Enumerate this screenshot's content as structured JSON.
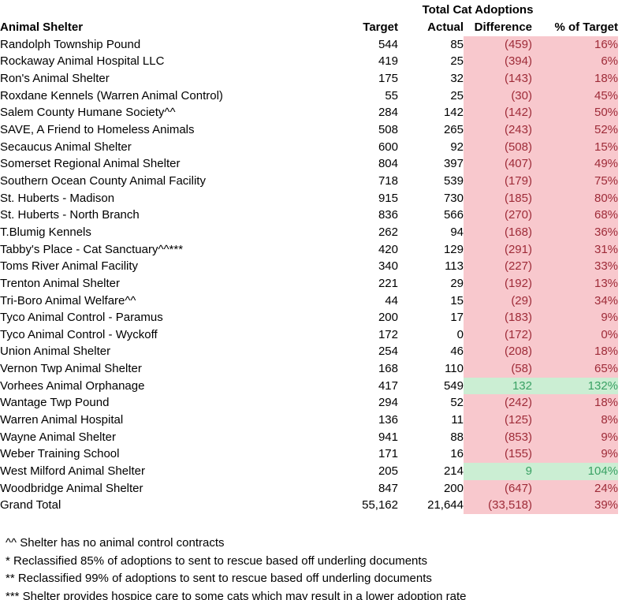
{
  "title": "Total Cat Adoptions",
  "colors": {
    "negative_fill": "#F8C8CD",
    "negative_text": "#9E2B38",
    "positive_fill": "#CBEED3",
    "positive_text": "#3AA164",
    "text": "#000000",
    "background": "#FFFFFF"
  },
  "table": {
    "columns": {
      "shelter": "Animal Shelter",
      "target": "Target",
      "actual": "Actual",
      "difference": "Difference",
      "pct": "% of Target"
    },
    "rows": [
      {
        "shelter": "Randolph Township Pound",
        "target": "544",
        "actual": "85",
        "difference": "(459)",
        "pct": "16%",
        "status": "negative"
      },
      {
        "shelter": "Rockaway Animal Hospital LLC",
        "target": "419",
        "actual": "25",
        "difference": "(394)",
        "pct": "6%",
        "status": "negative"
      },
      {
        "shelter": "Ron's Animal Shelter",
        "target": "175",
        "actual": "32",
        "difference": "(143)",
        "pct": "18%",
        "status": "negative"
      },
      {
        "shelter": "Roxdane Kennels (Warren Animal Control)",
        "target": "55",
        "actual": "25",
        "difference": "(30)",
        "pct": "45%",
        "status": "negative"
      },
      {
        "shelter": "Salem County Humane Society^^",
        "target": "284",
        "actual": "142",
        "difference": "(142)",
        "pct": "50%",
        "status": "negative"
      },
      {
        "shelter": "SAVE, A Friend to Homeless Animals",
        "target": "508",
        "actual": "265",
        "difference": "(243)",
        "pct": "52%",
        "status": "negative"
      },
      {
        "shelter": "Secaucus Animal Shelter",
        "target": "600",
        "actual": "92",
        "difference": "(508)",
        "pct": "15%",
        "status": "negative"
      },
      {
        "shelter": "Somerset Regional Animal Shelter",
        "target": "804",
        "actual": "397",
        "difference": "(407)",
        "pct": "49%",
        "status": "negative"
      },
      {
        "shelter": "Southern Ocean County Animal Facility",
        "target": "718",
        "actual": "539",
        "difference": "(179)",
        "pct": "75%",
        "status": "negative"
      },
      {
        "shelter": "St. Huberts - Madison",
        "target": "915",
        "actual": "730",
        "difference": "(185)",
        "pct": "80%",
        "status": "negative"
      },
      {
        "shelter": "St. Huberts - North Branch",
        "target": "836",
        "actual": "566",
        "difference": "(270)",
        "pct": "68%",
        "status": "negative"
      },
      {
        "shelter": "T.Blumig Kennels",
        "target": "262",
        "actual": "94",
        "difference": "(168)",
        "pct": "36%",
        "status": "negative"
      },
      {
        "shelter": "Tabby's Place - Cat Sanctuary^^***",
        "target": "420",
        "actual": "129",
        "difference": "(291)",
        "pct": "31%",
        "status": "negative"
      },
      {
        "shelter": "Toms River Animal Facility",
        "target": "340",
        "actual": "113",
        "difference": "(227)",
        "pct": "33%",
        "status": "negative"
      },
      {
        "shelter": "Trenton Animal Shelter",
        "target": "221",
        "actual": "29",
        "difference": "(192)",
        "pct": "13%",
        "status": "negative"
      },
      {
        "shelter": "Tri-Boro Animal Welfare^^",
        "target": "44",
        "actual": "15",
        "difference": "(29)",
        "pct": "34%",
        "status": "negative"
      },
      {
        "shelter": "Tyco Animal Control - Paramus",
        "target": "200",
        "actual": "17",
        "difference": "(183)",
        "pct": "9%",
        "status": "negative"
      },
      {
        "shelter": "Tyco Animal Control - Wyckoff",
        "target": "172",
        "actual": "0",
        "difference": "(172)",
        "pct": "0%",
        "status": "negative"
      },
      {
        "shelter": "Union Animal Shelter",
        "target": "254",
        "actual": "46",
        "difference": "(208)",
        "pct": "18%",
        "status": "negative"
      },
      {
        "shelter": "Vernon Twp Animal Shelter",
        "target": "168",
        "actual": "110",
        "difference": "(58)",
        "pct": "65%",
        "status": "negative"
      },
      {
        "shelter": "Vorhees Animal Orphanage",
        "target": "417",
        "actual": "549",
        "difference": "132",
        "pct": "132%",
        "status": "positive"
      },
      {
        "shelter": "Wantage Twp Pound",
        "target": "294",
        "actual": "52",
        "difference": "(242)",
        "pct": "18%",
        "status": "negative"
      },
      {
        "shelter": "Warren Animal Hospital",
        "target": "136",
        "actual": "11",
        "difference": "(125)",
        "pct": "8%",
        "status": "negative"
      },
      {
        "shelter": "Wayne Animal Shelter",
        "target": "941",
        "actual": "88",
        "difference": "(853)",
        "pct": "9%",
        "status": "negative"
      },
      {
        "shelter": "Weber Training School",
        "target": "171",
        "actual": "16",
        "difference": "(155)",
        "pct": "9%",
        "status": "negative"
      },
      {
        "shelter": "West Milford Animal Shelter",
        "target": "205",
        "actual": "214",
        "difference": "9",
        "pct": "104%",
        "status": "positive"
      },
      {
        "shelter": "Woodbridge Animal Shelter",
        "target": "847",
        "actual": "200",
        "difference": "(647)",
        "pct": "24%",
        "status": "negative"
      },
      {
        "shelter": "Grand Total",
        "target": "55,162",
        "actual": "21,644",
        "difference": "(33,518)",
        "pct": "39%",
        "status": "negative"
      }
    ]
  },
  "footnotes": [
    "^^ Shelter has no animal control contracts",
    "* Reclassified 85% of adoptions to sent to rescue based off underling documents",
    "** Reclassified 99% of adoptions to sent to rescue based off underling documents",
    "*** Shelter provides hospice care to some cats which may result in a lower adoption rate"
  ]
}
